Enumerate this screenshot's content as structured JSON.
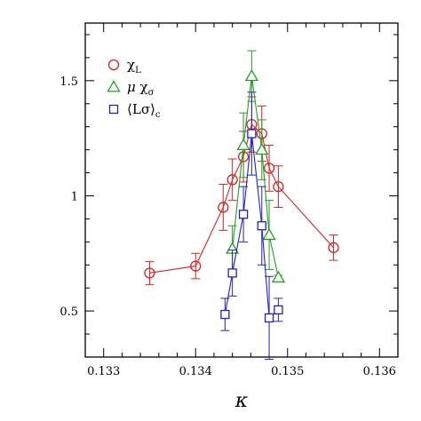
{
  "chart_data": {
    "type": "scatter",
    "xlabel": "κ",
    "ylabel": "",
    "title": "",
    "xlim": [
      0.1328,
      0.1362
    ],
    "ylim": [
      0.3,
      1.75
    ],
    "xticks": [
      0.133,
      0.134,
      0.135,
      0.136
    ],
    "xtick_labels": [
      "0.133",
      "0.134",
      "0.135",
      "0.136"
    ],
    "yticks": [
      0.5,
      1.0,
      1.5
    ],
    "ytick_labels": [
      "0.5",
      "1",
      "1.5"
    ],
    "grid": false,
    "legend_position": "top-left",
    "series": [
      {
        "name": "χ_L",
        "legend": {
          "main": "χ",
          "sub": "L",
          "pre": "",
          "post": ""
        },
        "marker": "circle",
        "color": "#e02020",
        "points": [
          {
            "x": 0.1335,
            "y": 0.665,
            "err": 0.05
          },
          {
            "x": 0.134,
            "y": 0.695,
            "err": 0.055
          },
          {
            "x": 0.1343,
            "y": 0.95,
            "err": 0.1
          },
          {
            "x": 0.1344,
            "y": 1.07,
            "err": 0.09
          },
          {
            "x": 0.13452,
            "y": 1.17,
            "err": 0.11
          },
          {
            "x": 0.13461,
            "y": 1.31,
            "err": 0.12
          },
          {
            "x": 0.13472,
            "y": 1.27,
            "err": 0.12
          },
          {
            "x": 0.1348,
            "y": 1.12,
            "err": 0.1
          },
          {
            "x": 0.1349,
            "y": 1.04,
            "err": 0.09
          },
          {
            "x": 0.1355,
            "y": 0.775,
            "err": 0.055
          }
        ]
      },
      {
        "name": "μ χ_σ",
        "legend": {
          "main": "χ",
          "sub": "σ",
          "pre": "μ ",
          "post": ""
        },
        "marker": "triangle",
        "color": "#22a022",
        "points": [
          {
            "x": 0.1344,
            "y": 0.77,
            "err": 0.1
          },
          {
            "x": 0.13452,
            "y": 1.22,
            "err": 0.14
          },
          {
            "x": 0.13461,
            "y": 1.52,
            "err": 0.11
          },
          {
            "x": 0.13472,
            "y": 1.2,
            "err": 0.13
          },
          {
            "x": 0.1348,
            "y": 0.83,
            "err": 0.15
          },
          {
            "x": 0.1349,
            "y": 0.645,
            "err": 0.01
          }
        ]
      },
      {
        "name": "⟨Lσ⟩_c",
        "legend": {
          "main": "⟨Lσ⟩",
          "sub": "c",
          "pre": "",
          "post": ""
        },
        "marker": "square",
        "color": "#2020d0",
        "points": [
          {
            "x": 0.13432,
            "y": 0.485,
            "err": 0.07
          },
          {
            "x": 0.1344,
            "y": 0.665,
            "err": 0.1
          },
          {
            "x": 0.13452,
            "y": 0.92,
            "err": 0.12
          },
          {
            "x": 0.13461,
            "y": 1.27,
            "err": 0.18
          },
          {
            "x": 0.13472,
            "y": 0.87,
            "err": 0.17
          },
          {
            "x": 0.1348,
            "y": 0.47,
            "err": 0.18
          },
          {
            "x": 0.1349,
            "y": 0.505,
            "err": 0.05
          }
        ]
      }
    ]
  }
}
